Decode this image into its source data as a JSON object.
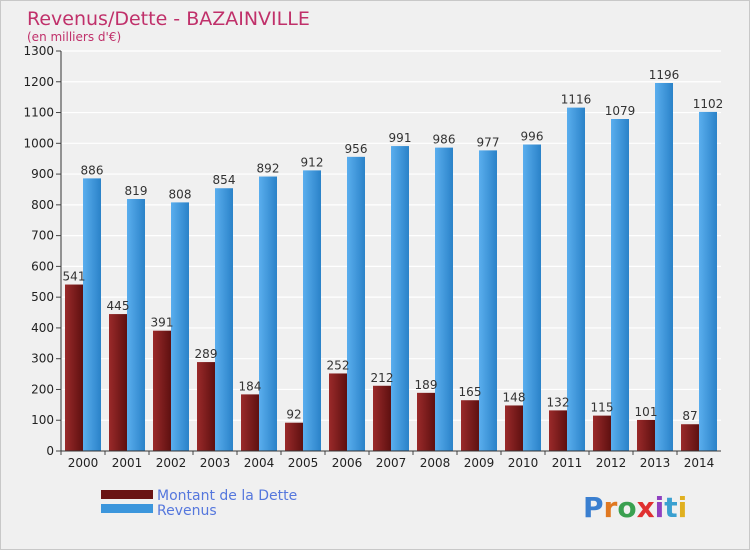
{
  "chart_data": {
    "type": "bar",
    "title": "Revenus/Dette - BAZAINVILLE",
    "subtitle": "(en milliers d'€)",
    "categories": [
      "2000",
      "2001",
      "2002",
      "2003",
      "2004",
      "2005",
      "2006",
      "2007",
      "2008",
      "2009",
      "2010",
      "2011",
      "2012",
      "2013",
      "2014"
    ],
    "series": [
      {
        "name": "Montant de la Dette",
        "values": [
          541,
          445,
          391,
          289,
          184,
          92,
          252,
          212,
          189,
          165,
          148,
          132,
          115,
          101,
          87
        ],
        "color": "#7a1a1a"
      },
      {
        "name": "Revenus",
        "values": [
          886,
          819,
          808,
          854,
          892,
          912,
          956,
          991,
          986,
          977,
          996,
          1116,
          1079,
          1196,
          1102
        ],
        "color": "#3c96dc"
      }
    ],
    "ylim": [
      0,
      1300
    ],
    "yticks": [
      0,
      100,
      200,
      300,
      400,
      500,
      600,
      700,
      800,
      900,
      1000,
      1100,
      1200,
      1300
    ],
    "grid": true,
    "legend_position": "bottom-left"
  },
  "logo": {
    "text": "Proxiti",
    "letters": [
      "P",
      "r",
      "o",
      "x",
      "i",
      "t",
      "i"
    ],
    "colors": [
      "#3a7fd0",
      "#e07820",
      "#3aa050",
      "#e03030",
      "#9040c0",
      "#3aa0d0",
      "#e0b020"
    ]
  }
}
